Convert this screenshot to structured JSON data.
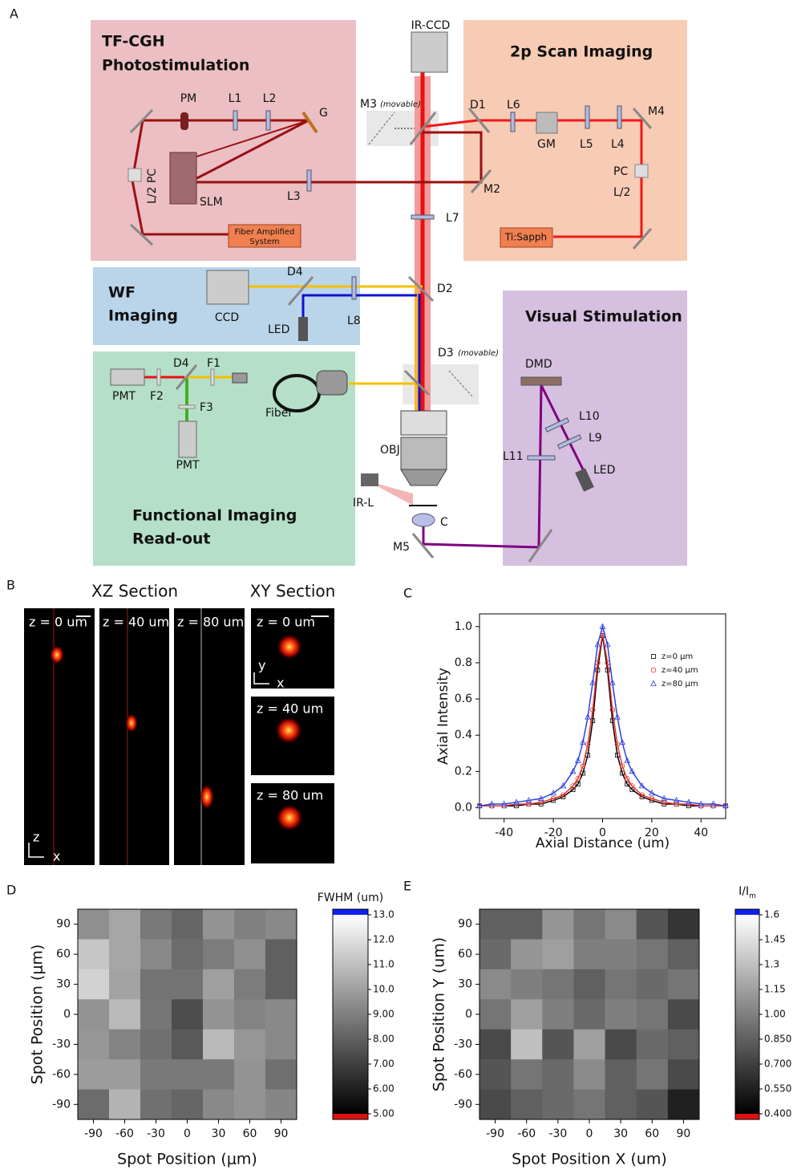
{
  "panel_labels": [
    "A",
    "B",
    "C",
    "D",
    "E"
  ],
  "diagram": {
    "titles": [
      "TF-CGH",
      "Photostimulation",
      "2p Scan Imaging",
      "WF",
      "Imaging",
      "Visual Stimulation",
      "Functional Imaging",
      "Read-out"
    ],
    "labels": [
      "IR-CCD",
      "PM",
      "L1",
      "L2",
      "G",
      "M3",
      "(movable)",
      "D1",
      "L6",
      "GM",
      "L5",
      "L4",
      "M4",
      "L/2 PC",
      "SLM",
      "L3",
      "M2",
      "L7",
      "Fiber Amplified",
      "System",
      "Ti:Sapph",
      "PC",
      "L/2",
      "CCD",
      "D4",
      "LED",
      "L8",
      "D2",
      "D4",
      "F1",
      "PMT",
      "F2",
      "F3",
      "PMT",
      "Fiber",
      "D3",
      "(movable)",
      "DMD",
      "L10",
      "L9",
      "L11",
      "LED",
      "OBJ",
      "IR-L",
      "C",
      "M5"
    ]
  },
  "microscopy": {
    "xz_title": "XZ Section",
    "xy_title": "XY Section",
    "xz_labels": [
      "z = 0 um",
      "z = 40 um",
      "z = 80 um"
    ],
    "xy_labels": [
      "z = 0 um",
      "z = 40 um",
      "z = 80 um"
    ],
    "xz_axes": [
      "z",
      "x"
    ],
    "xy_axes": [
      "y",
      "x"
    ]
  },
  "chart_data": [
    {
      "type": "line",
      "xlabel": "Axial Distance (um)",
      "ylabel": "Axial Intensity",
      "legend": "upper right",
      "x": [
        -50,
        -45,
        -40,
        -35,
        -30,
        -25,
        -20,
        -16,
        -12,
        -10,
        -8,
        -6,
        -4,
        -2,
        0,
        2,
        4,
        6,
        8,
        10,
        12,
        16,
        20,
        25,
        30,
        35,
        40,
        45,
        50
      ],
      "series": [
        {
          "name": "z=0 μm",
          "color": "#000000",
          "marker": "square",
          "values": [
            0.01,
            0.01,
            0.01,
            0.01,
            0.02,
            0.02,
            0.04,
            0.06,
            0.1,
            0.13,
            0.19,
            0.29,
            0.48,
            0.76,
            0.95,
            0.76,
            0.48,
            0.29,
            0.19,
            0.13,
            0.1,
            0.06,
            0.04,
            0.02,
            0.02,
            0.01,
            0.01,
            0.01,
            0.01
          ]
        },
        {
          "name": "z=40 μm",
          "color": "#e8352c",
          "marker": "circle",
          "values": [
            0.01,
            0.01,
            0.01,
            0.02,
            0.02,
            0.03,
            0.05,
            0.07,
            0.12,
            0.16,
            0.23,
            0.35,
            0.54,
            0.8,
            0.96,
            0.8,
            0.54,
            0.35,
            0.23,
            0.16,
            0.12,
            0.07,
            0.05,
            0.03,
            0.02,
            0.02,
            0.01,
            0.01,
            0.01
          ]
        },
        {
          "name": "z=80 μm",
          "color": "#2b3fe0",
          "marker": "triangle",
          "values": [
            0.01,
            0.02,
            0.02,
            0.03,
            0.04,
            0.05,
            0.08,
            0.12,
            0.2,
            0.26,
            0.36,
            0.5,
            0.69,
            0.9,
            1.0,
            0.9,
            0.69,
            0.5,
            0.36,
            0.26,
            0.2,
            0.12,
            0.08,
            0.05,
            0.04,
            0.03,
            0.02,
            0.02,
            0.01
          ]
        }
      ],
      "xlim": [
        -50,
        50
      ],
      "xticks": [
        -40,
        -20,
        0,
        20,
        40
      ],
      "ylim": [
        -0.06,
        1.07
      ],
      "yticks": [
        {
          "value": 0,
          "label": "0.0"
        },
        0.2,
        0.4,
        0.6,
        0.8,
        {
          "value": 1,
          "label": "1.0"
        }
      ]
    },
    {
      "type": "heatmap",
      "xlabel": "Spot Position (μm)",
      "ylabel": "Spot Position (μm)",
      "x": [
        -90,
        -60,
        -30,
        0,
        30,
        60,
        90
      ],
      "y": [
        90,
        60,
        30,
        0,
        -30,
        -60,
        -90
      ],
      "z": [
        [
          9.5,
          10.2,
          8.8,
          8.2,
          9.6,
          9.0,
          9.3
        ],
        [
          11.2,
          10.2,
          9.3,
          8.4,
          8.9,
          9.5,
          8.0
        ],
        [
          11.6,
          10.1,
          8.6,
          8.6,
          10.0,
          8.9,
          8.0
        ],
        [
          9.6,
          10.8,
          8.7,
          7.4,
          9.6,
          9.1,
          9.3
        ],
        [
          9.7,
          9.1,
          8.5,
          7.8,
          10.8,
          9.7,
          9.3
        ],
        [
          9.9,
          9.9,
          8.8,
          8.8,
          8.8,
          9.6,
          8.5
        ],
        [
          8.4,
          10.6,
          8.5,
          8.2,
          9.3,
          9.6,
          9.2
        ]
      ],
      "xlim": [
        -105,
        105
      ],
      "ylim": [
        -105,
        105
      ],
      "xticks": [
        -90,
        -60,
        -30,
        0,
        30,
        60,
        90
      ],
      "yticks": [
        -90,
        -60,
        -30,
        0,
        30,
        60,
        90
      ],
      "colorbar": {
        "title": "FWHM (um)",
        "clim": [
          5,
          13
        ],
        "under_color": "#e01010",
        "over_color": "#1020f0",
        "ticks": [
          {
            "value": 5,
            "label": "5.00"
          },
          {
            "value": 6,
            "label": "6.00"
          },
          {
            "value": 7,
            "label": "7.00"
          },
          {
            "value": 8,
            "label": "8.00"
          },
          {
            "value": 9,
            "label": "9.00"
          },
          {
            "value": 10,
            "label": "10.0"
          },
          {
            "value": 11,
            "label": "11.0"
          },
          {
            "value": 12,
            "label": "12.0"
          },
          {
            "value": 13,
            "label": "13.0"
          }
        ]
      }
    },
    {
      "type": "heatmap",
      "xlabel": "Spot Position X (um)",
      "ylabel": "Spot Position Y (um)",
      "x": [
        -90,
        -60,
        -30,
        0,
        30,
        60,
        90
      ],
      "y": [
        90,
        60,
        30,
        0,
        -30,
        -60,
        -90
      ],
      "z": [
        [
          0.85,
          0.85,
          1.1,
          0.95,
          1.05,
          0.8,
          0.65
        ],
        [
          0.9,
          1.1,
          1.15,
          1.0,
          1.0,
          0.95,
          0.85
        ],
        [
          1.05,
          1.0,
          0.95,
          0.85,
          0.95,
          0.9,
          0.95
        ],
        [
          0.95,
          1.15,
          1.0,
          0.9,
          1.0,
          0.95,
          0.75
        ],
        [
          0.75,
          1.3,
          0.8,
          1.15,
          0.75,
          0.9,
          0.85
        ],
        [
          0.8,
          0.95,
          0.9,
          1.05,
          0.85,
          0.95,
          0.75
        ],
        [
          0.75,
          0.85,
          0.9,
          0.95,
          0.85,
          0.8,
          0.55
        ]
      ],
      "xlim": [
        -105,
        105
      ],
      "ylim": [
        -105,
        105
      ],
      "xticks": [
        -90,
        -60,
        -30,
        0,
        30,
        60,
        90
      ],
      "yticks": [
        -90,
        -60,
        -30,
        0,
        30,
        60,
        90
      ],
      "colorbar": {
        "title": "I/I",
        "title_sub": "m",
        "clim": [
          0.4,
          1.6
        ],
        "under_color": "#e01010",
        "over_color": "#1020f0",
        "ticks": [
          {
            "value": 0.4,
            "label": "0.400"
          },
          {
            "value": 0.55,
            "label": "0.550"
          },
          {
            "value": 0.7,
            "label": "0.700"
          },
          {
            "value": 0.85,
            "label": "0.850"
          },
          {
            "value": 1,
            "label": "1.00"
          },
          1.15,
          1.3,
          1.45,
          1.6
        ]
      }
    }
  ]
}
